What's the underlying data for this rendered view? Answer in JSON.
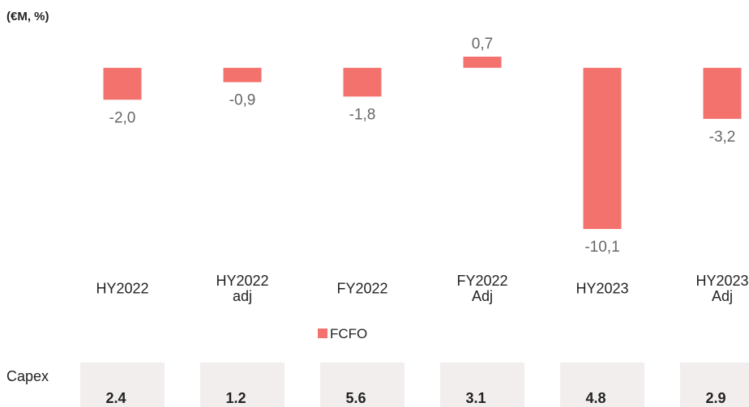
{
  "chart_data": {
    "type": "bar",
    "subtitle": "(€M, %)",
    "categories": [
      "HY2022",
      "HY2022\nadj",
      "FY2022",
      "FY2022\nAdj",
      "HY2023",
      "HY2023\nAdj"
    ],
    "series": [
      {
        "name": "FCFO",
        "color": "#f4726e",
        "values": [
          -2.0,
          -0.9,
          -1.8,
          0.7,
          -10.1,
          -3.2
        ],
        "value_labels": [
          "-2,0",
          "-0,9",
          "-1,8",
          "0,7",
          "-10,1",
          "-3,2"
        ]
      }
    ],
    "capex": {
      "label": "Capex",
      "values": [
        2.4,
        1.2,
        5.6,
        3.1,
        4.8,
        2.9
      ]
    }
  }
}
